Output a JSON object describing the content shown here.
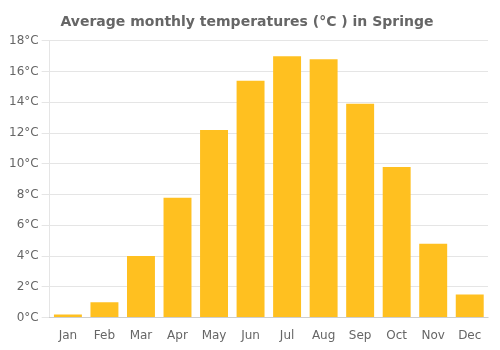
{
  "chart_data": {
    "type": "bar",
    "title": "Average monthly temperatures (°C ) in Springe",
    "categories": [
      "Jan",
      "Feb",
      "Mar",
      "Apr",
      "May",
      "Jun",
      "Jul",
      "Aug",
      "Sep",
      "Oct",
      "Nov",
      "Dec"
    ],
    "values": [
      0.2,
      1.0,
      4.0,
      7.8,
      12.2,
      15.4,
      17.0,
      16.8,
      13.9,
      9.8,
      4.8,
      1.5
    ],
    "color": "#FFC020",
    "ylim": [
      0,
      18
    ],
    "yticks": [
      {
        "value": 0,
        "label": "0°C"
      },
      {
        "value": 2,
        "label": "2°C"
      },
      {
        "value": 4,
        "label": "4°C"
      },
      {
        "value": 6,
        "label": "6°C"
      },
      {
        "value": 8,
        "label": "8°C"
      },
      {
        "value": 10,
        "label": "10°C"
      },
      {
        "value": 12,
        "label": "12°C"
      },
      {
        "value": 14,
        "label": "14°C"
      },
      {
        "value": 16,
        "label": "16°C"
      },
      {
        "value": 18,
        "label": "18°C"
      }
    ],
    "grid": true
  }
}
